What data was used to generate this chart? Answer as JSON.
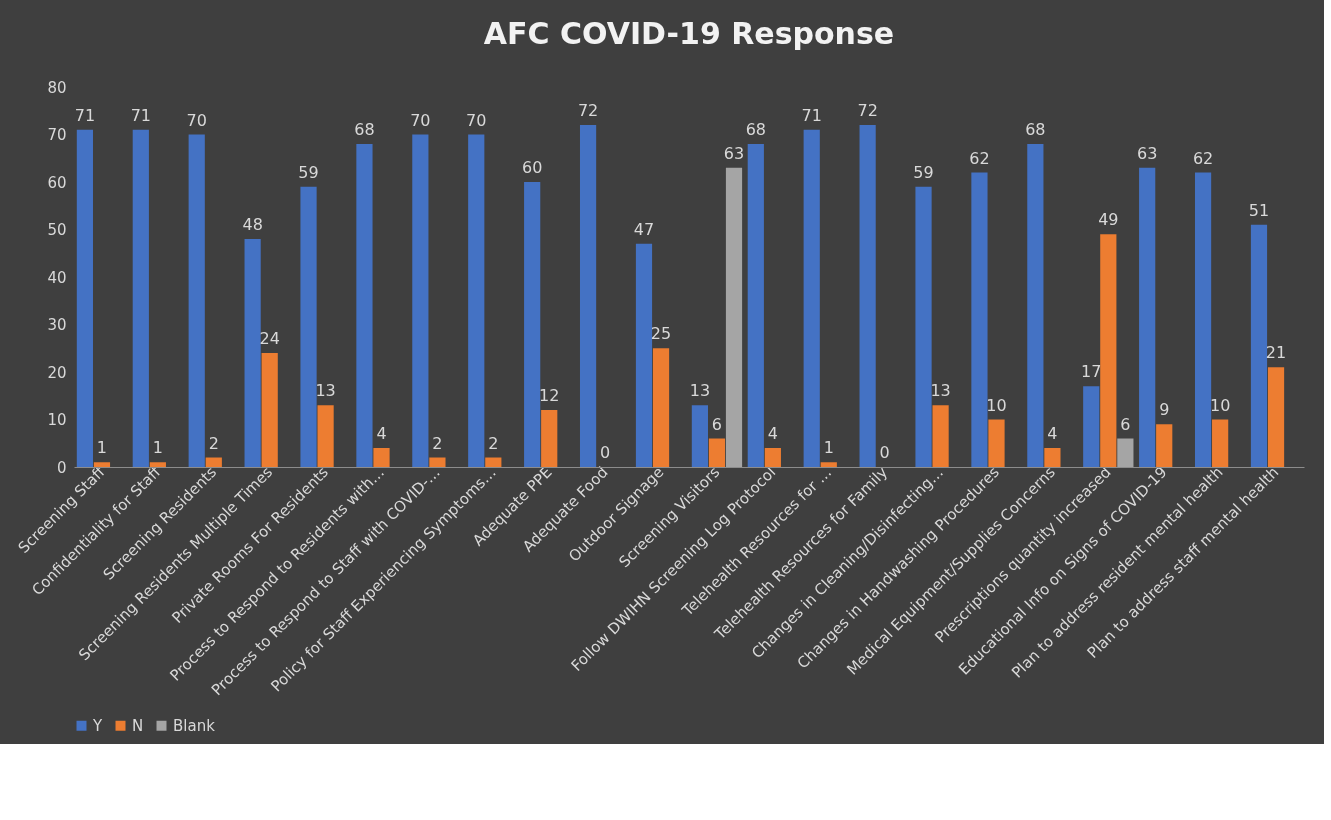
{
  "chart_data": {
    "type": "bar",
    "title": "AFC COVID-19 Response",
    "categories": [
      "Screening Staff",
      "Confidentiality for Staff",
      "Screening Residents",
      "Screening Residents Multiple Times",
      "Private Rooms For Residents",
      "Process to Respond to Residents with…",
      "Process to Respond to Staff with COVID-…",
      "Policy for Staff Experiencing Symptoms…",
      "Adequate PPE",
      "Adequate Food",
      "Outdoor Signage",
      "Screening Visitors",
      "Follow DWIHN Screening Log Protocol",
      "Telehealth Resources for …",
      "Telehealth Resources for Family",
      "Changes in Cleaning/Disinfecting…",
      "Changes in Handwashing Procedures",
      "Medical Equipment/Supplies Concerns",
      "Prescriptions quantity increased",
      "Educational Info on Signs of COVID-19",
      "Plan to address resident mental health",
      "Plan to address staff mental health"
    ],
    "series": [
      {
        "name": "Y",
        "color": "#4472c4",
        "values": [
          71,
          71,
          70,
          48,
          59,
          68,
          70,
          70,
          60,
          72,
          47,
          13,
          68,
          71,
          72,
          59,
          62,
          68,
          17,
          63,
          62,
          51
        ]
      },
      {
        "name": "N",
        "color": "#ed7d31",
        "values": [
          1,
          1,
          2,
          24,
          13,
          4,
          2,
          2,
          12,
          0,
          25,
          6,
          4,
          1,
          0,
          13,
          10,
          4,
          49,
          9,
          10,
          21
        ]
      },
      {
        "name": "Blank",
        "color": "#a5a5a5",
        "values": [
          null,
          null,
          null,
          null,
          null,
          null,
          null,
          null,
          null,
          null,
          null,
          63,
          null,
          null,
          null,
          null,
          null,
          null,
          6,
          null,
          null,
          null
        ]
      }
    ],
    "ylim": [
      0,
      80
    ],
    "yticks": [
      0,
      10,
      20,
      30,
      40,
      50,
      60,
      70,
      80
    ],
    "grid": false,
    "legend": "bottom",
    "data_labels": true
  }
}
